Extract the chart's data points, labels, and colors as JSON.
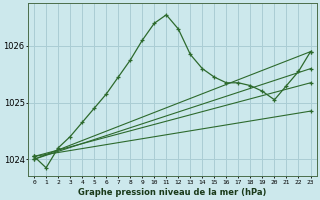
{
  "bg_color": "#cce8ec",
  "grid_color": "#aacdd4",
  "line_color": "#2d6a2d",
  "title": "Graphe pression niveau de la mer (hPa)",
  "xlim": [
    -0.5,
    23.5
  ],
  "ylim": [
    1023.7,
    1026.75
  ],
  "xticks": [
    0,
    1,
    2,
    3,
    4,
    5,
    6,
    7,
    8,
    9,
    10,
    11,
    12,
    13,
    14,
    15,
    16,
    17,
    18,
    19,
    20,
    21,
    22,
    23
  ],
  "yticks": [
    1024,
    1025,
    1026
  ],
  "series1_x": [
    0,
    1,
    2,
    3,
    4,
    5,
    6,
    7,
    8,
    9,
    10,
    11,
    12,
    13,
    14,
    15,
    16,
    17,
    18,
    19,
    20,
    21,
    22,
    23
  ],
  "series1_y": [
    1024.05,
    1023.85,
    1024.2,
    1024.4,
    1024.65,
    1024.9,
    1025.15,
    1025.45,
    1025.75,
    1026.1,
    1026.4,
    1026.55,
    1026.3,
    1025.85,
    1025.6,
    1025.45,
    1025.35,
    1025.35,
    1025.3,
    1025.2,
    1025.05,
    1025.3,
    1025.55,
    1025.9
  ],
  "series2_x": [
    0,
    23
  ],
  "series2_y": [
    1024.0,
    1025.9
  ],
  "series3_x": [
    0,
    23
  ],
  "series3_y": [
    1024.0,
    1025.6
  ],
  "series4_x": [
    0,
    23
  ],
  "series4_y": [
    1024.05,
    1025.35
  ],
  "series5_x": [
    0,
    23
  ],
  "series5_y": [
    1024.05,
    1024.85
  ]
}
